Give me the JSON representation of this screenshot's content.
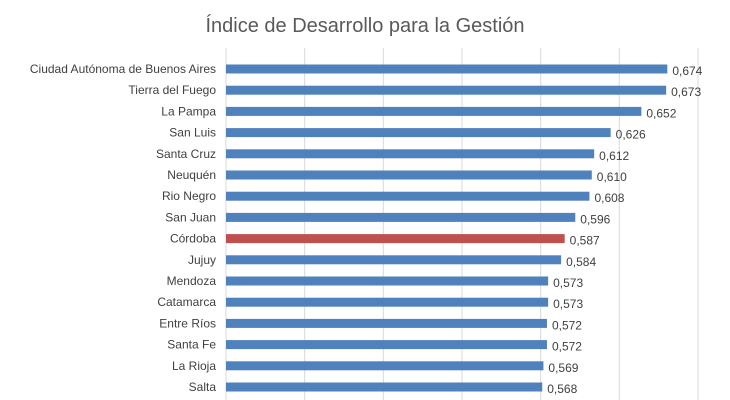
{
  "chart_data": {
    "type": "bar",
    "orientation": "horizontal",
    "title": "Índice de Desarrollo para la Gestión",
    "xlabel": "",
    "ylabel": "",
    "xlim": [
      0.3,
      0.7
    ],
    "gridlines": true,
    "legend": "none",
    "categories": [
      "Ciudad Autónoma de Buenos Aires",
      "Tierra del Fuego",
      "La Pampa",
      "San Luis",
      "Santa Cruz",
      "Neuquén",
      "Rio Negro",
      "San Juan",
      "Córdoba",
      "Jujuy",
      "Mendoza",
      "Catamarca",
      "Entre Ríos",
      "Santa Fe",
      "La Rioja",
      "Salta"
    ],
    "values": [
      0.674,
      0.673,
      0.652,
      0.626,
      0.612,
      0.61,
      0.608,
      0.596,
      0.587,
      0.584,
      0.573,
      0.573,
      0.572,
      0.572,
      0.569,
      0.568
    ],
    "value_labels": [
      "0,674",
      "0,673",
      "0,652",
      "0,626",
      "0,612",
      "0,610",
      "0,608",
      "0,596",
      "0,587",
      "0,584",
      "0,573",
      "0,573",
      "0,572",
      "0,572",
      "0,569",
      "0,568"
    ],
    "highlight_category": "Córdoba",
    "colors": {
      "bar": "#4F81BD",
      "highlight": "#C0504D",
      "grid": "#D9D9D9",
      "text": "#404040",
      "title": "#595959"
    }
  }
}
